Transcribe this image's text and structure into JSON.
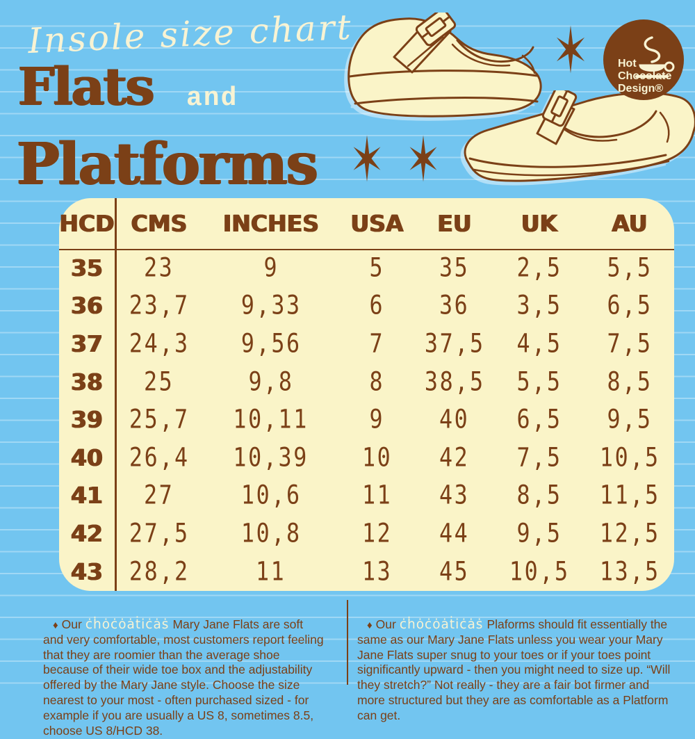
{
  "header": {
    "title_script": "Insole size chart",
    "title_flats": "Flats",
    "title_and": "and",
    "title_platforms": "Platforms"
  },
  "logo": {
    "line1": "Hot",
    "line2": "Chocolate",
    "line3": "Design®"
  },
  "colors": {
    "background_blue": "#72C5F0",
    "cream": "#FAF4C8",
    "brown": "#7B4017"
  },
  "icons": {
    "star": "six-pointed-star",
    "logo_cup": "hot-chocolate-cup",
    "bullet": "diamond"
  },
  "table": {
    "headers": [
      "HCD",
      "CMS",
      "INCHES",
      "USA",
      "EU",
      "UK",
      "AU"
    ],
    "rows": [
      [
        "35",
        "23",
        "9",
        "5",
        "35",
        "2,5",
        "5,5"
      ],
      [
        "36",
        "23,7",
        "9,33",
        "6",
        "36",
        "3,5",
        "6,5"
      ],
      [
        "37",
        "24,3",
        "9,56",
        "7",
        "37,5",
        "4,5",
        "7,5"
      ],
      [
        "38",
        "25",
        "9,8",
        "8",
        "38,5",
        "5,5",
        "8,5"
      ],
      [
        "39",
        "25,7",
        "10,11",
        "9",
        "40",
        "6,5",
        "9,5"
      ],
      [
        "40",
        "26,4",
        "10,39",
        "10",
        "42",
        "7,5",
        "10,5"
      ],
      [
        "41",
        "27",
        "10,6",
        "11",
        "43",
        "8,5",
        "11,5"
      ],
      [
        "42",
        "27,5",
        "10,8",
        "12",
        "44",
        "9,5",
        "12,5"
      ],
      [
        "43",
        "28,2",
        "11",
        "13",
        "45",
        "10,5",
        "13,5"
      ]
    ]
  },
  "footnotes": {
    "left": {
      "bullet": "♦",
      "prefix": "Our",
      "brand": "ċḣȯċȯȧṫiċȧṡ",
      "text": "Mary Jane Flats are soft and very comfortable, most customers report feeling that they are roomier than the average shoe because of their wide toe box and the adjustability offered by the Mary Jane style. Choose the size nearest to your most - often purchased sized - for example if you are usually a US 8, sometimes 8.5, choose US 8/HCD 38."
    },
    "right": {
      "bullet": "♦",
      "prefix": "Our",
      "brand": "ċḣȯċȯȧṫiċȧṡ",
      "text": "Plaforms should fit essentially the same as our Mary Jane Flats unless you wear your Mary Jane Flats super snug to your toes or if your toes point significantly upward - then you might need to size up. “Will they stretch?” Not really - they are a fair bot firmer and more structured but they are as comfortable as a Platform can get."
    }
  }
}
